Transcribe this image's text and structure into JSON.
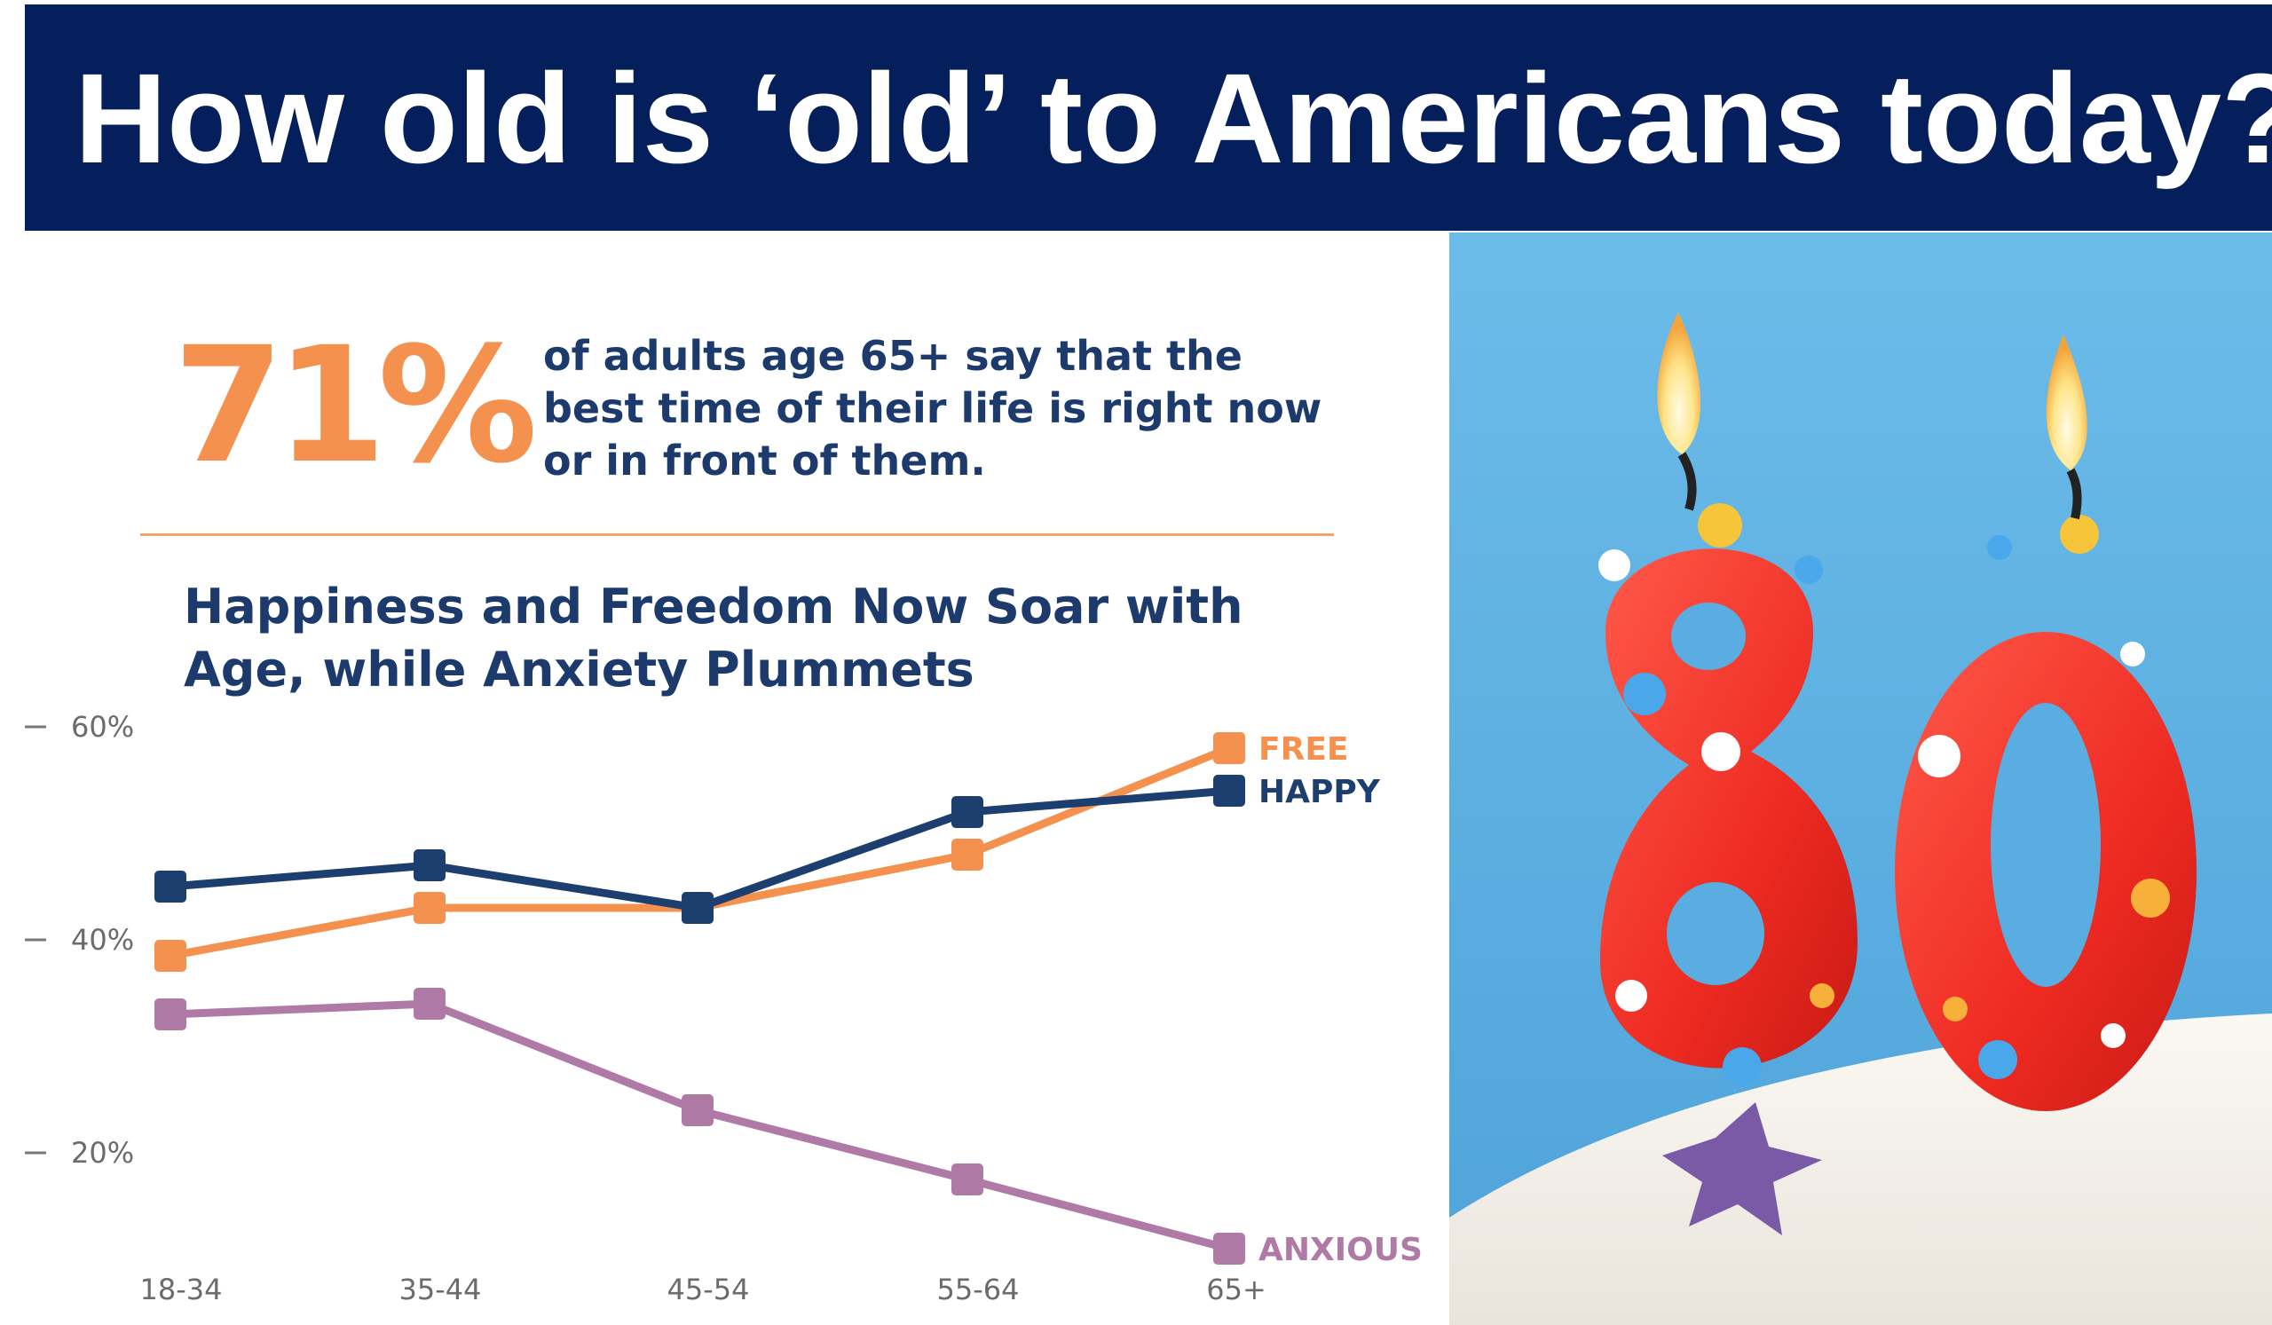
{
  "header": {
    "title": "How old is ‘old’ to Americans today?"
  },
  "stat": {
    "number": "71%",
    "text": "of adults age 65+ say that the best time of their life is right now or in front of them."
  },
  "colors": {
    "banner": "#041f5c",
    "happy": "#1d3f6f",
    "free": "#f4914e",
    "anxious": "#b07aa7",
    "title_text": "#1d3a6c"
  },
  "photo": {
    "candle_number": "80"
  },
  "chart_data": {
    "type": "line",
    "title": "Happiness and Freedom Now Soar with Age, while Anxiety Plummets",
    "categories": [
      "18-34",
      "35-44",
      "45-54",
      "55-64",
      "65+"
    ],
    "ylim": [
      9,
      60
    ],
    "yticks": [
      {
        "value": 60,
        "label": "60%"
      },
      {
        "value": 40,
        "label": "40%"
      },
      {
        "value": 20,
        "label": "20%"
      }
    ],
    "legend": "labels at line ends",
    "series": [
      {
        "name": "FREE",
        "color": "#f4914e",
        "values": [
          38.5,
          43,
          43,
          48,
          58
        ]
      },
      {
        "name": "HAPPY",
        "color": "#1d3f6f",
        "values": [
          45,
          47,
          43,
          52,
          54
        ]
      },
      {
        "name": "ANXIOUS",
        "color": "#b07aa7",
        "values": [
          33,
          34,
          24,
          17.5,
          11
        ]
      }
    ]
  }
}
